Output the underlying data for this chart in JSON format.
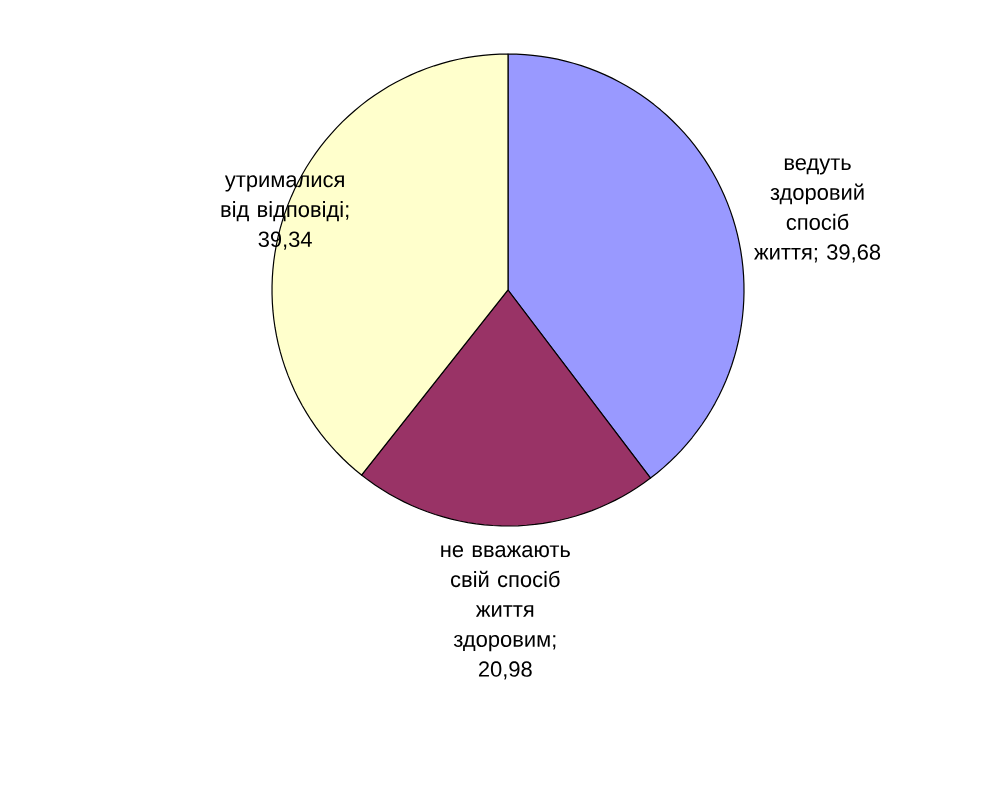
{
  "chart_data": {
    "type": "pie",
    "categories": [
      "ведуть здоровий спосіб життя",
      "не вважають свій спосіб життя здоровим",
      "утрималися від відповіді"
    ],
    "values": [
      39.68,
      20.98,
      39.34
    ],
    "value_labels": [
      "; 39,68",
      "; 20,98",
      "; 39,34"
    ],
    "colors": [
      "#9999ff",
      "#993366",
      "#ffffcc"
    ]
  }
}
